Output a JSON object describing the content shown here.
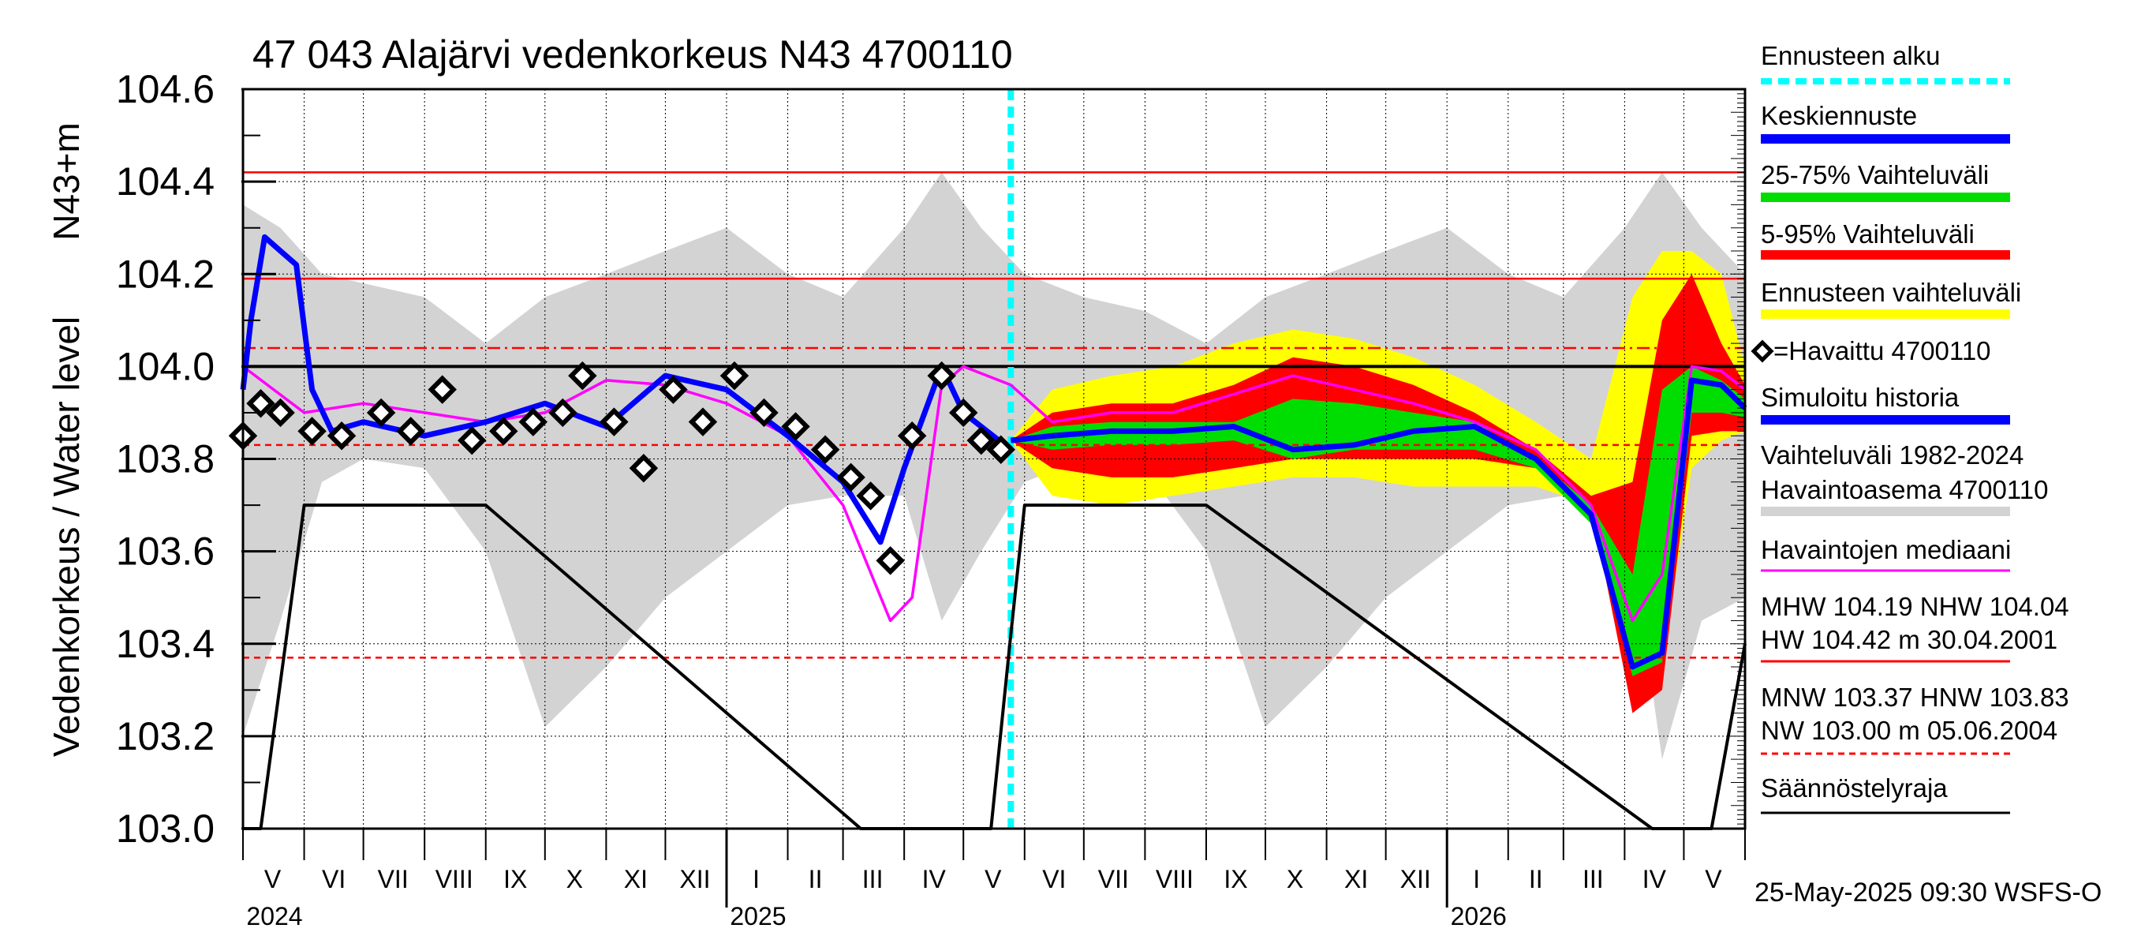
{
  "chart_data": {
    "type": "line",
    "title": "47 043 Alajärvi vedenkorkeus N43 4700110",
    "ylabel": "Vedenkorkeus / Water level",
    "ylabel_unit": "N43+m",
    "ylim": [
      103.0,
      104.6
    ],
    "yticks": [
      "103.0",
      "103.2",
      "103.4",
      "103.6",
      "103.8",
      "104.0",
      "104.2",
      "104.4",
      "104.6"
    ],
    "x_start": "2024-05-01",
    "x_end": "2026-06-01",
    "forecast_start": "2025-05-25",
    "month_labels": [
      {
        "label": "V",
        "date": "2024-05-16"
      },
      {
        "label": "VI",
        "date": "2024-06-16"
      },
      {
        "label": "VII",
        "date": "2024-07-16"
      },
      {
        "label": "VIII",
        "date": "2024-08-16"
      },
      {
        "label": "IX",
        "date": "2024-09-16"
      },
      {
        "label": "X",
        "date": "2024-10-16"
      },
      {
        "label": "XI",
        "date": "2024-11-16"
      },
      {
        "label": "XII",
        "date": "2024-12-16"
      },
      {
        "label": "I",
        "date": "2025-01-16"
      },
      {
        "label": "II",
        "date": "2025-02-15"
      },
      {
        "label": "III",
        "date": "2025-03-16"
      },
      {
        "label": "IV",
        "date": "2025-04-16"
      },
      {
        "label": "V",
        "date": "2025-05-16"
      },
      {
        "label": "VI",
        "date": "2025-06-16"
      },
      {
        "label": "VII",
        "date": "2025-07-16"
      },
      {
        "label": "VIII",
        "date": "2025-08-16"
      },
      {
        "label": "IX",
        "date": "2025-09-16"
      },
      {
        "label": "X",
        "date": "2025-10-16"
      },
      {
        "label": "XI",
        "date": "2025-11-16"
      },
      {
        "label": "XII",
        "date": "2025-12-16"
      },
      {
        "label": "I",
        "date": "2026-01-16"
      },
      {
        "label": "II",
        "date": "2026-02-15"
      },
      {
        "label": "III",
        "date": "2026-03-16"
      },
      {
        "label": "IV",
        "date": "2026-04-16"
      },
      {
        "label": "V",
        "date": "2026-05-16"
      }
    ],
    "year_labels": [
      {
        "label": "2024",
        "date": "2024-05-01"
      },
      {
        "label": "2025",
        "date": "2025-01-01"
      },
      {
        "label": "2026",
        "date": "2026-01-01"
      }
    ],
    "reference_lines": [
      {
        "name": "HW",
        "value": 104.42,
        "color": "#ff0000",
        "style": "solid"
      },
      {
        "name": "MHW",
        "value": 104.19,
        "color": "#ff0000",
        "style": "solid"
      },
      {
        "name": "NHW",
        "value": 104.04,
        "color": "#ff0000",
        "style": "dashdot"
      },
      {
        "name": "regulation_upper",
        "value": 104.0,
        "color": "#000000",
        "style": "solid"
      },
      {
        "name": "HNW",
        "value": 103.83,
        "color": "#ff0000",
        "style": "dashed"
      },
      {
        "name": "MNW",
        "value": 103.37,
        "color": "#ff0000",
        "style": "dashed"
      },
      {
        "name": "NW",
        "value": 103.0,
        "color": "#ff0000",
        "style": "dashed"
      }
    ],
    "series": [
      {
        "name": "Vaihteluväli 1982-2024 Havaintoasema 4700110",
        "color": "#d3d3d3",
        "x": [
          "2024-05-01",
          "2024-05-20",
          "2024-06-10",
          "2024-07-01",
          "2024-08-01",
          "2024-09-01",
          "2024-10-01",
          "2024-11-01",
          "2024-12-01",
          "2025-01-01",
          "2025-02-01",
          "2025-03-01",
          "2025-04-01",
          "2025-04-20",
          "2025-05-10",
          "2025-06-01",
          "2025-07-01",
          "2025-08-01",
          "2025-09-01",
          "2025-10-01",
          "2025-11-01",
          "2025-12-01",
          "2026-01-01",
          "2026-02-01",
          "2026-03-01",
          "2026-04-01",
          "2026-04-20",
          "2026-05-10",
          "2026-06-01"
        ],
        "upper": [
          104.35,
          104.3,
          104.2,
          104.18,
          104.15,
          104.05,
          104.15,
          104.2,
          104.25,
          104.3,
          104.2,
          104.15,
          104.3,
          104.42,
          104.3,
          104.2,
          104.15,
          104.12,
          104.05,
          104.15,
          104.2,
          104.25,
          104.3,
          104.2,
          104.15,
          104.3,
          104.42,
          104.3,
          104.2
        ],
        "lower": [
          103.2,
          103.45,
          103.75,
          103.8,
          103.78,
          103.6,
          103.22,
          103.35,
          103.5,
          103.6,
          103.7,
          103.72,
          103.72,
          103.45,
          103.6,
          103.75,
          103.8,
          103.78,
          103.6,
          103.22,
          103.35,
          103.5,
          103.6,
          103.7,
          103.72,
          103.72,
          103.15,
          103.45,
          103.5
        ]
      },
      {
        "name": "Ennusteen vaihteluväli",
        "color": "#ffff00",
        "x": [
          "2025-05-25",
          "2025-06-15",
          "2025-07-15",
          "2025-08-15",
          "2025-09-15",
          "2025-10-15",
          "2025-11-15",
          "2025-12-15",
          "2026-01-15",
          "2026-02-15",
          "2026-03-15",
          "2026-04-05",
          "2026-04-20",
          "2026-05-05",
          "2026-05-20",
          "2026-06-01"
        ],
        "upper": [
          103.84,
          103.95,
          103.98,
          104.0,
          104.05,
          104.08,
          104.06,
          104.02,
          103.96,
          103.88,
          103.8,
          104.15,
          104.25,
          104.25,
          104.2,
          104.0
        ],
        "lower": [
          103.84,
          103.72,
          103.7,
          103.72,
          103.74,
          103.76,
          103.76,
          103.74,
          103.74,
          103.74,
          103.7,
          103.35,
          103.35,
          103.78,
          103.84,
          103.86
        ]
      },
      {
        "name": "5-95% Vaihteluväli",
        "color": "#ff0000",
        "x": [
          "2025-05-25",
          "2025-06-15",
          "2025-07-15",
          "2025-08-15",
          "2025-09-15",
          "2025-10-15",
          "2025-11-15",
          "2025-12-15",
          "2026-01-15",
          "2026-02-15",
          "2026-03-15",
          "2026-04-05",
          "2026-04-20",
          "2026-05-05",
          "2026-05-20",
          "2026-06-01"
        ],
        "upper": [
          103.84,
          103.9,
          103.92,
          103.92,
          103.96,
          104.02,
          104.0,
          103.96,
          103.9,
          103.82,
          103.72,
          103.75,
          104.1,
          104.2,
          104.05,
          103.96
        ],
        "lower": [
          103.84,
          103.78,
          103.76,
          103.76,
          103.78,
          103.8,
          103.8,
          103.8,
          103.8,
          103.78,
          103.7,
          103.25,
          103.3,
          103.85,
          103.86,
          103.86
        ]
      },
      {
        "name": "25-75% Vaihteluväli",
        "color": "#00dd00",
        "x": [
          "2025-05-25",
          "2025-06-15",
          "2025-07-15",
          "2025-08-15",
          "2025-09-15",
          "2025-10-15",
          "2025-11-15",
          "2025-12-15",
          "2026-01-15",
          "2026-02-15",
          "2026-03-15",
          "2026-04-05",
          "2026-04-20",
          "2026-05-05",
          "2026-05-20",
          "2026-06-01"
        ],
        "upper": [
          103.84,
          103.87,
          103.88,
          103.88,
          103.88,
          103.93,
          103.92,
          103.9,
          103.88,
          103.8,
          103.7,
          103.55,
          103.95,
          104.0,
          103.97,
          103.93
        ],
        "lower": [
          103.84,
          103.82,
          103.83,
          103.83,
          103.84,
          103.8,
          103.82,
          103.82,
          103.82,
          103.78,
          103.66,
          103.33,
          103.36,
          103.9,
          103.9,
          103.89
        ]
      },
      {
        "name": "Havaintojen mediaani",
        "color": "#ff00ff",
        "x": [
          "2024-05-01",
          "2024-06-01",
          "2024-07-01",
          "2024-08-01",
          "2024-09-01",
          "2024-10-01",
          "2024-11-01",
          "2024-12-01",
          "2025-01-01",
          "2025-02-01",
          "2025-03-01",
          "2025-03-25",
          "2025-04-05",
          "2025-04-20",
          "2025-05-01",
          "2025-05-25",
          "2025-06-15",
          "2025-07-15",
          "2025-08-15",
          "2025-09-15",
          "2025-10-15",
          "2025-11-15",
          "2025-12-15",
          "2026-01-15",
          "2026-02-15",
          "2026-03-15",
          "2026-04-05",
          "2026-04-20",
          "2026-05-05",
          "2026-05-20",
          "2026-06-01"
        ],
        "y": [
          104.0,
          103.9,
          103.92,
          103.9,
          103.88,
          103.9,
          103.97,
          103.96,
          103.92,
          103.85,
          103.7,
          103.45,
          103.5,
          103.96,
          104.0,
          103.96,
          103.88,
          103.9,
          103.9,
          103.94,
          103.98,
          103.95,
          103.92,
          103.88,
          103.82,
          103.7,
          103.45,
          103.55,
          104.0,
          103.99,
          103.95
        ]
      },
      {
        "name": "Simuloitu historia",
        "color": "#0000ff",
        "x": [
          "2024-05-01",
          "2024-05-05",
          "2024-05-12",
          "2024-05-20",
          "2024-05-28",
          "2024-06-05",
          "2024-06-15",
          "2024-07-01",
          "2024-08-01",
          "2024-09-01",
          "2024-10-01",
          "2024-11-01",
          "2024-12-01",
          "2025-01-01",
          "2025-02-01",
          "2025-03-01",
          "2025-03-20",
          "2025-04-01",
          "2025-04-20",
          "2025-05-01",
          "2025-05-25"
        ],
        "y": [
          103.95,
          104.1,
          104.28,
          104.25,
          104.22,
          103.95,
          103.86,
          103.88,
          103.85,
          103.88,
          103.92,
          103.87,
          103.98,
          103.95,
          103.85,
          103.75,
          103.62,
          103.78,
          104.0,
          103.9,
          103.82
        ]
      },
      {
        "name": "Keskiennuste",
        "color": "#0000ff",
        "x": [
          "2025-05-25",
          "2025-06-15",
          "2025-07-15",
          "2025-08-15",
          "2025-09-15",
          "2025-10-15",
          "2025-11-15",
          "2025-12-15",
          "2026-01-15",
          "2026-02-15",
          "2026-03-15",
          "2026-04-05",
          "2026-04-20",
          "2026-05-05",
          "2026-05-20",
          "2026-06-01"
        ],
        "y": [
          103.84,
          103.85,
          103.86,
          103.86,
          103.87,
          103.82,
          103.83,
          103.86,
          103.87,
          103.8,
          103.68,
          103.35,
          103.38,
          103.97,
          103.96,
          103.91
        ]
      },
      {
        "name": "Säännöstelyraja",
        "color": "#000000",
        "x": [
          "2024-05-01",
          "2024-05-10",
          "2024-06-01",
          "2024-09-01",
          "2025-03-10",
          "2025-05-15",
          "2025-05-25",
          "2025-06-01",
          "2025-09-01",
          "2026-04-15",
          "2026-05-15",
          "2026-06-01"
        ],
        "y": [
          103.0,
          103.0,
          103.7,
          103.7,
          103.0,
          103.0,
          103.42,
          103.7,
          103.7,
          103.0,
          103.0,
          103.4
        ]
      },
      {
        "name": "Havaittu 4700110",
        "color": "#000000",
        "x": [
          "2024-05-01",
          "2024-05-10",
          "2024-05-20",
          "2024-06-05",
          "2024-06-20",
          "2024-07-10",
          "2024-07-25",
          "2024-08-10",
          "2024-08-25",
          "2024-09-10",
          "2024-09-25",
          "2024-10-10",
          "2024-10-20",
          "2024-11-05",
          "2024-11-20",
          "2024-12-05",
          "2024-12-20",
          "2025-01-05",
          "2025-01-20",
          "2025-02-05",
          "2025-02-20",
          "2025-03-05",
          "2025-03-15",
          "2025-03-25",
          "2025-04-05",
          "2025-04-20",
          "2025-05-01",
          "2025-05-10",
          "2025-05-20"
        ],
        "y": [
          103.85,
          103.92,
          103.9,
          103.86,
          103.85,
          103.9,
          103.86,
          103.95,
          103.84,
          103.86,
          103.88,
          103.9,
          103.98,
          103.88,
          103.78,
          103.95,
          103.88,
          103.98,
          103.9,
          103.87,
          103.82,
          103.76,
          103.72,
          103.58,
          103.85,
          103.98,
          103.9,
          103.84,
          103.82
        ]
      }
    ]
  },
  "legend": [
    {
      "label": "Ennusteen alku",
      "color": "#00ffff",
      "style": "dashed"
    },
    {
      "label": "Keskiennuste",
      "color": "#0000ff",
      "style": "thick"
    },
    {
      "label": "25-75% Vaihteluväli",
      "color": "#00dd00",
      "style": "thick"
    },
    {
      "label": "5-95% Vaihteluväli",
      "color": "#ff0000",
      "style": "thick"
    },
    {
      "label": "Ennusteen vaihteluväli",
      "color": "#ffff00",
      "style": "thick"
    },
    {
      "label": "=Havaittu 4700110",
      "color": "#000000",
      "style": "marker"
    },
    {
      "label": "Simuloitu historia",
      "color": "#0000ff",
      "style": "thick"
    },
    {
      "label": "Vaihteluväli 1982-2024",
      "label2": " Havaintoasema 4700110",
      "color": "#d3d3d3",
      "style": "thick"
    },
    {
      "label": "Havaintojen mediaani",
      "color": "#ff00ff",
      "style": "line"
    },
    {
      "label": "MHW 104.19 NHW 104.04",
      "label2": "HW 104.42 m 30.04.2001",
      "color": "#ff0000",
      "style": "line"
    },
    {
      "label": "MNW 103.37 HNW 103.83",
      "label2": "NW 103.00 m 05.06.2004",
      "color": "#ff0000",
      "style": "dashed"
    },
    {
      "label": "Säännöstelyraja",
      "color": "#000000",
      "style": "line"
    }
  ],
  "footer": "25-May-2025 09:30 WSFS-O"
}
